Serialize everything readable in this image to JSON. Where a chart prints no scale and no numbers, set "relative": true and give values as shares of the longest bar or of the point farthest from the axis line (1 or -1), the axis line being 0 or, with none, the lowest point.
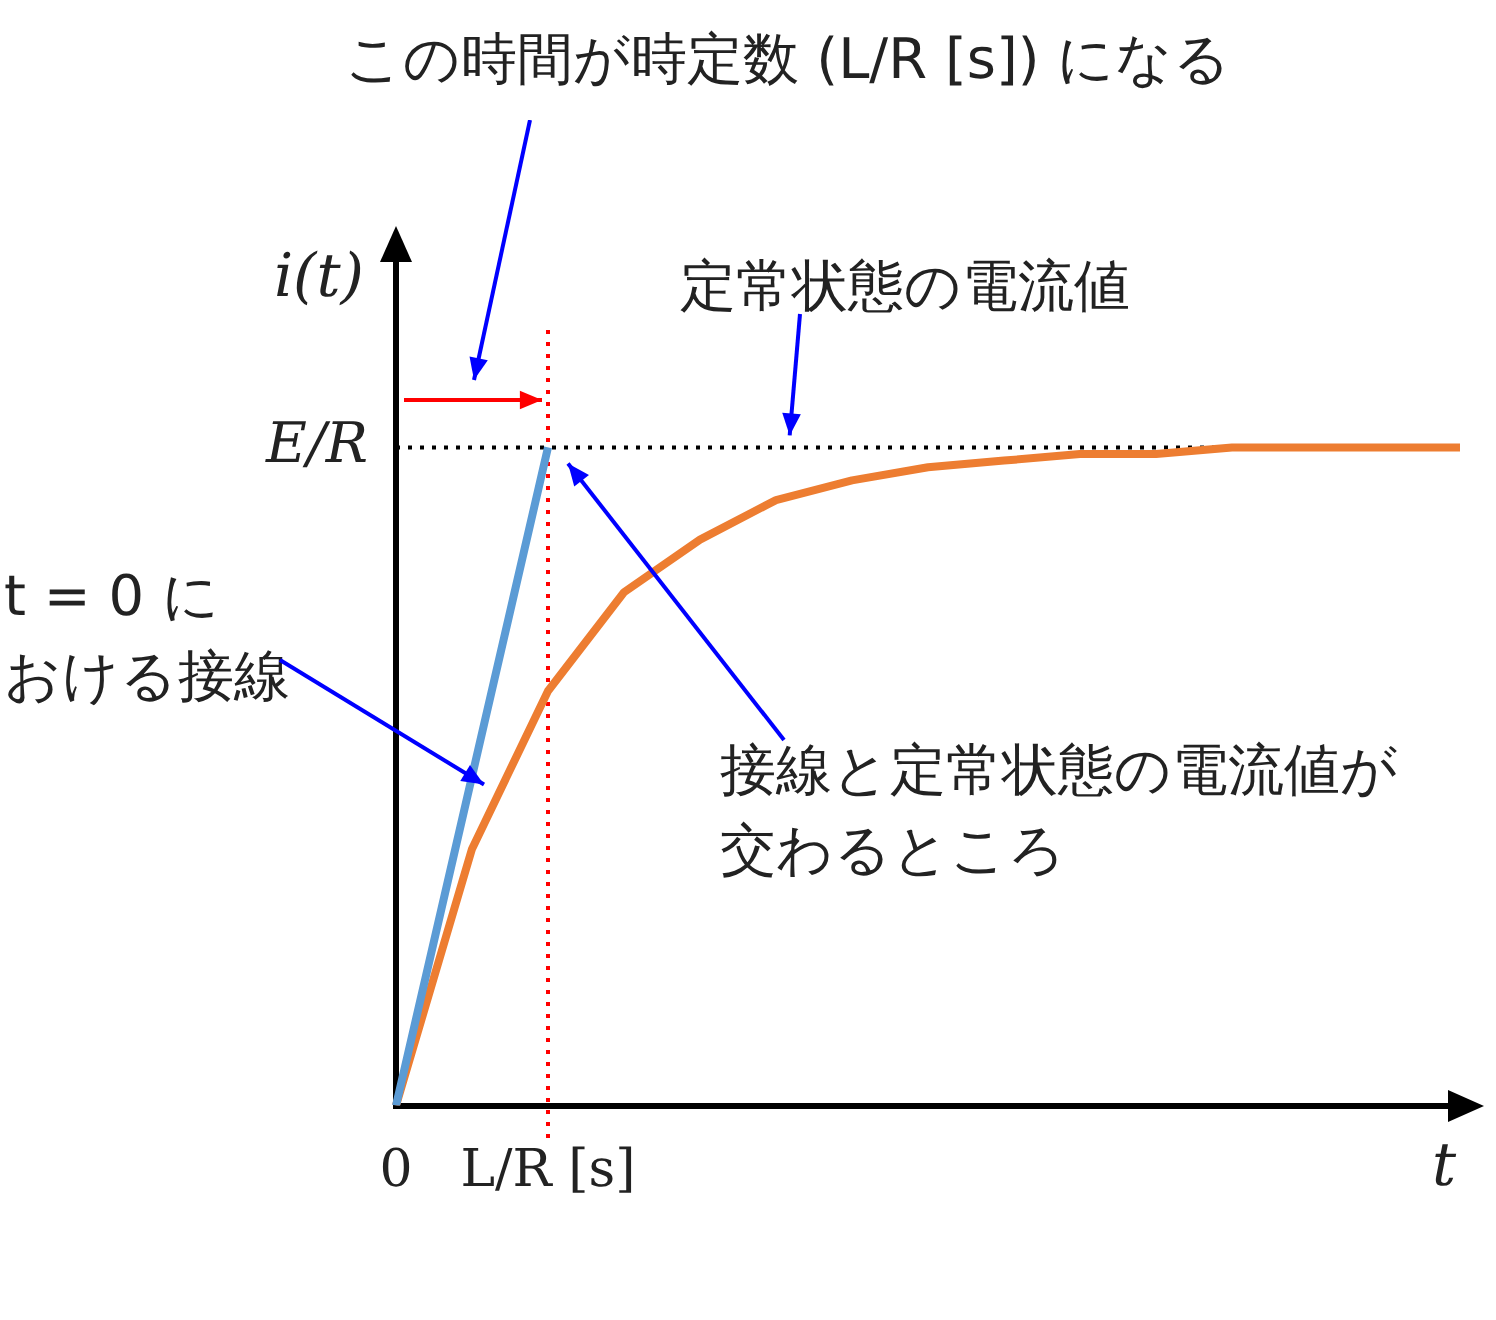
{
  "chart_data": {
    "type": "line",
    "title": "この時間が時定数 (L/R [s]) になる",
    "xlabel": "t",
    "ylabel": "i(t)",
    "relative": true,
    "categories": [
      "0",
      null,
      "L/R [s]",
      null,
      null,
      null,
      null,
      null,
      null,
      null,
      null,
      null,
      null,
      null,
      null
    ],
    "grid": false,
    "legend": false,
    "marker": "none",
    "series": [
      {
        "color": "#5b9bd5",
        "values": [
          0,
          0.5,
          1,
          null,
          null,
          null,
          null,
          null,
          null,
          null,
          null,
          null,
          null,
          null,
          null
        ]
      },
      {
        "color": "#ed7d31",
        "values": [
          0,
          0.39,
          0.63,
          0.78,
          0.86,
          0.92,
          0.95,
          0.97,
          0.98,
          0.99,
          0.99,
          1,
          1,
          1,
          1
        ]
      }
    ],
    "ref_lines": [
      {
        "axis": "y",
        "value": 1,
        "label": "E/R",
        "color": "#000000",
        "line_style": "dotted"
      },
      {
        "axis": "x",
        "value": "L/R [s]",
        "color": "#ff0000",
        "line_style": "dotted"
      }
    ],
    "annotations": [
      "定常状態の電流値",
      "t = 0 における接線",
      "接線と定常状態の電流値が交わるところ"
    ]
  }
}
